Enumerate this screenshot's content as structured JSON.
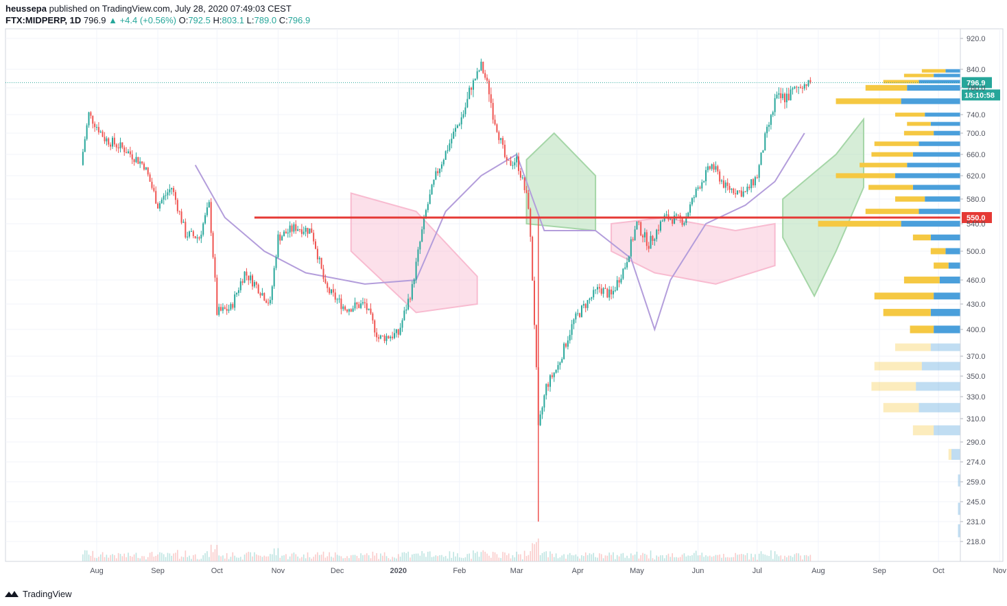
{
  "header": {
    "author": "heussepa",
    "published_text": "published on TradingView.com, July 28, 2020 07:49:03 CEST",
    "symbol": "FTX:MIDPERP, 1D",
    "last": "796.9",
    "change_arrow": "▲",
    "change": "+4.4 (+0.56%)",
    "o_label": "O:",
    "o_value": "792.5",
    "h_label": "H:",
    "h_value": "803.1",
    "l_label": "L:",
    "l_value": "789.0",
    "c_label": "C:",
    "c_value": "796.9"
  },
  "footer": {
    "brand": "TradingView",
    "icon": "tradingview-logo-icon"
  },
  "colors": {
    "up": "#26a69a",
    "down": "#ef5350",
    "line": "#e53935",
    "kumo_bull": "#a5d6a7",
    "kumo_bear": "#f8bbd0",
    "kijun": "#b39ddb",
    "vp_up": "#4a9fdb",
    "vp_down": "#f5c842",
    "volume_ma": "#ff9800"
  },
  "chart_data": {
    "type": "candlestick",
    "x_ticks": [
      "Aug",
      "Sep",
      "Oct",
      "Nov",
      "Dec",
      "2020",
      "Feb",
      "Mar",
      "Apr",
      "May",
      "Jun",
      "Jul",
      "Aug",
      "Sep",
      "Oct",
      "Nov"
    ],
    "y_ticks": [
      "920.0",
      "840.0",
      "780.0",
      "740.0",
      "700.0",
      "660.0",
      "620.0",
      "580.0",
      "540.0",
      "500.0",
      "460.0",
      "430.0",
      "400.0",
      "370.0",
      "350.0",
      "330.0",
      "310.0",
      "290.0",
      "274.0",
      "259.0",
      "245.0",
      "231.0",
      "218.0"
    ],
    "last_price_label": "796.9",
    "countdown_label": "18:10:58",
    "horizontal_level_label": "550.0",
    "horizontal_level": 550,
    "close_path": [
      {
        "t": "2019-07-24",
        "v": 640
      },
      {
        "t": "2019-07-28",
        "v": 740
      },
      {
        "t": "2019-08-05",
        "v": 690
      },
      {
        "t": "2019-08-15",
        "v": 670
      },
      {
        "t": "2019-08-25",
        "v": 640
      },
      {
        "t": "2019-09-01",
        "v": 570
      },
      {
        "t": "2019-09-08",
        "v": 600
      },
      {
        "t": "2019-09-15",
        "v": 525
      },
      {
        "t": "2019-09-22",
        "v": 520
      },
      {
        "t": "2019-09-27",
        "v": 570
      },
      {
        "t": "2019-10-01",
        "v": 420
      },
      {
        "t": "2019-10-08",
        "v": 425
      },
      {
        "t": "2019-10-15",
        "v": 470
      },
      {
        "t": "2019-10-22",
        "v": 450
      },
      {
        "t": "2019-10-28",
        "v": 430
      },
      {
        "t": "2019-11-01",
        "v": 520
      },
      {
        "t": "2019-11-10",
        "v": 535
      },
      {
        "t": "2019-11-18",
        "v": 530
      },
      {
        "t": "2019-11-25",
        "v": 450
      },
      {
        "t": "2019-12-05",
        "v": 425
      },
      {
        "t": "2019-12-15",
        "v": 430
      },
      {
        "t": "2019-12-22",
        "v": 390
      },
      {
        "t": "2020-01-01",
        "v": 395
      },
      {
        "t": "2020-01-08",
        "v": 450
      },
      {
        "t": "2020-01-15",
        "v": 560
      },
      {
        "t": "2020-01-20",
        "v": 620
      },
      {
        "t": "2020-01-28",
        "v": 690
      },
      {
        "t": "2020-02-05",
        "v": 760
      },
      {
        "t": "2020-02-12",
        "v": 850
      },
      {
        "t": "2020-02-18",
        "v": 740
      },
      {
        "t": "2020-02-25",
        "v": 640
      },
      {
        "t": "2020-03-01",
        "v": 650
      },
      {
        "t": "2020-03-07",
        "v": 570
      },
      {
        "t": "2020-03-12",
        "v": 300
      },
      {
        "t": "2020-03-16",
        "v": 340
      },
      {
        "t": "2020-03-22",
        "v": 360
      },
      {
        "t": "2020-03-30",
        "v": 410
      },
      {
        "t": "2020-04-05",
        "v": 430
      },
      {
        "t": "2020-04-12",
        "v": 450
      },
      {
        "t": "2020-04-18",
        "v": 440
      },
      {
        "t": "2020-04-25",
        "v": 480
      },
      {
        "t": "2020-05-01",
        "v": 540
      },
      {
        "t": "2020-05-07",
        "v": 510
      },
      {
        "t": "2020-05-15",
        "v": 550
      },
      {
        "t": "2020-05-25",
        "v": 545
      },
      {
        "t": "2020-06-01",
        "v": 600
      },
      {
        "t": "2020-06-08",
        "v": 640
      },
      {
        "t": "2020-06-15",
        "v": 600
      },
      {
        "t": "2020-06-25",
        "v": 590
      },
      {
        "t": "2020-07-01",
        "v": 620
      },
      {
        "t": "2020-07-05",
        "v": 690
      },
      {
        "t": "2020-07-10",
        "v": 760
      },
      {
        "t": "2020-07-18",
        "v": 770
      },
      {
        "t": "2020-07-24",
        "v": 790
      },
      {
        "t": "2020-07-28",
        "v": 796.9
      }
    ],
    "kijun": [
      {
        "t": "2019-09-20",
        "v": 640
      },
      {
        "t": "2019-10-05",
        "v": 550
      },
      {
        "t": "2019-10-25",
        "v": 500
      },
      {
        "t": "2019-11-15",
        "v": 470
      },
      {
        "t": "2019-12-15",
        "v": 455
      },
      {
        "t": "2020-01-10",
        "v": 460
      },
      {
        "t": "2020-01-25",
        "v": 560
      },
      {
        "t": "2020-02-12",
        "v": 620
      },
      {
        "t": "2020-03-01",
        "v": 660
      },
      {
        "t": "2020-03-15",
        "v": 530
      },
      {
        "t": "2020-04-10",
        "v": 530
      },
      {
        "t": "2020-04-28",
        "v": 490
      },
      {
        "t": "2020-05-10",
        "v": 400
      },
      {
        "t": "2020-05-18",
        "v": 460
      },
      {
        "t": "2020-06-05",
        "v": 540
      },
      {
        "t": "2020-06-25",
        "v": 570
      },
      {
        "t": "2020-07-10",
        "v": 610
      },
      {
        "t": "2020-07-25",
        "v": 700
      }
    ],
    "volume_profile": [
      {
        "price": 835,
        "up": 0.05,
        "down": 0.08
      },
      {
        "price": 820,
        "up": 0.09,
        "down": 0.1
      },
      {
        "price": 800,
        "up": 0.14,
        "down": 0.12
      },
      {
        "price": 780,
        "up": 0.18,
        "down": 0.14
      },
      {
        "price": 760,
        "up": 0.2,
        "down": 0.22
      },
      {
        "price": 740,
        "up": 0.12,
        "down": 0.1
      },
      {
        "price": 720,
        "up": 0.1,
        "down": 0.08
      },
      {
        "price": 700,
        "up": 0.09,
        "down": 0.1
      },
      {
        "price": 680,
        "up": 0.14,
        "down": 0.15
      },
      {
        "price": 660,
        "up": 0.16,
        "down": 0.14
      },
      {
        "price": 640,
        "up": 0.18,
        "down": 0.16
      },
      {
        "price": 620,
        "up": 0.22,
        "down": 0.2
      },
      {
        "price": 600,
        "up": 0.16,
        "down": 0.15
      },
      {
        "price": 580,
        "up": 0.12,
        "down": 0.1
      },
      {
        "price": 560,
        "up": 0.14,
        "down": 0.18
      },
      {
        "price": 540,
        "up": 0.2,
        "down": 0.28
      },
      {
        "price": 520,
        "up": 0.1,
        "down": 0.06
      },
      {
        "price": 500,
        "up": 0.05,
        "down": 0.05
      },
      {
        "price": 480,
        "up": 0.04,
        "down": 0.05
      },
      {
        "price": 460,
        "up": 0.07,
        "down": 0.12
      },
      {
        "price": 440,
        "up": 0.09,
        "down": 0.2
      },
      {
        "price": 420,
        "up": 0.1,
        "down": 0.16
      },
      {
        "price": 400,
        "up": 0.09,
        "down": 0.08
      },
      {
        "price": 380,
        "up": 0.1,
        "down": 0.12
      },
      {
        "price": 360,
        "up": 0.13,
        "down": 0.16
      },
      {
        "price": 340,
        "up": 0.15,
        "down": 0.15
      },
      {
        "price": 320,
        "up": 0.14,
        "down": 0.12
      },
      {
        "price": 300,
        "up": 0.09,
        "down": 0.07
      },
      {
        "price": 280,
        "up": 0.03,
        "down": 0.01
      },
      {
        "price": 260,
        "up": 0.008,
        "down": 0
      },
      {
        "price": 240,
        "up": 0.008,
        "down": 0
      },
      {
        "price": 225,
        "up": 0.008,
        "down": 0
      }
    ]
  }
}
